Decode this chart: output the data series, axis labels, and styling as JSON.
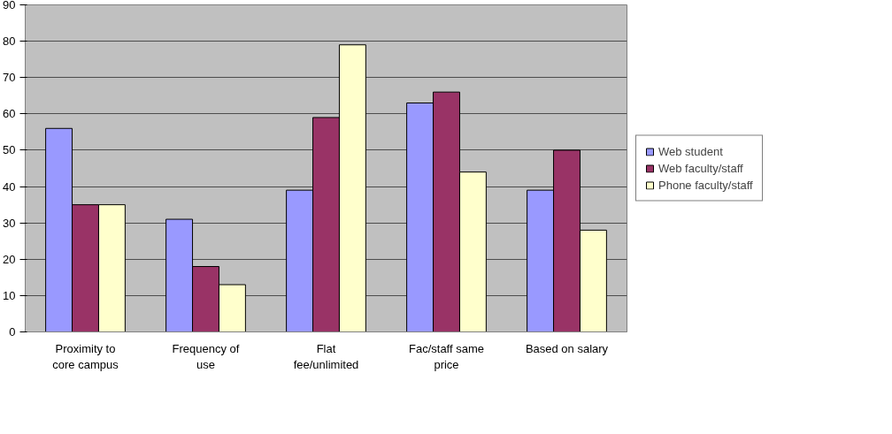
{
  "chart_data": {
    "type": "bar",
    "categories": [
      "Proximity to core campus",
      "Frequency of use",
      "Flat fee/unlimited",
      "Fac/staff same price",
      "Based on salary"
    ],
    "series": [
      {
        "name": "Web student",
        "color": "#9999ff",
        "values": [
          56,
          31,
          39,
          63,
          39
        ]
      },
      {
        "name": "Web faculty/staff",
        "color": "#993366",
        "values": [
          35,
          18,
          59,
          66,
          50
        ]
      },
      {
        "name": "Phone faculty/staff",
        "color": "#ffffcc",
        "values": [
          35,
          13,
          79,
          44,
          28
        ]
      }
    ],
    "ylim": [
      0,
      90
    ],
    "yticks": [
      0,
      10,
      20,
      30,
      40,
      50,
      60,
      70,
      80,
      90
    ],
    "grid": "y",
    "legend": "right"
  }
}
